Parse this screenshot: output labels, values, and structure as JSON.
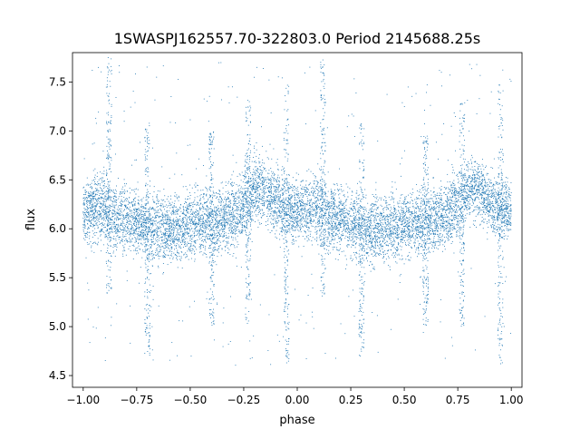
{
  "chart_data": {
    "type": "scatter",
    "title": "1SWASPJ162557.70-322803.0 Period 2145688.25s",
    "xlabel": "phase",
    "ylabel": "flux",
    "xlim": [
      -1.05,
      1.05
    ],
    "ylim": [
      4.38,
      7.8
    ],
    "xticks": [
      -1.0,
      -0.75,
      -0.5,
      -0.25,
      0.0,
      0.25,
      0.5,
      0.75,
      1.0
    ],
    "xtick_labels": [
      "−1.00",
      "−0.75",
      "−0.50",
      "−0.25",
      "0.00",
      "0.25",
      "0.50",
      "0.75",
      "1.00"
    ],
    "yticks": [
      4.5,
      5.0,
      5.5,
      6.0,
      6.5,
      7.0,
      7.5
    ],
    "ytick_labels": [
      "4.5",
      "5.0",
      "5.5",
      "6.0",
      "6.5",
      "7.0",
      "7.5"
    ],
    "grid": false,
    "marker_color": "#1f77b4",
    "profile": {
      "phase": [
        0.0,
        0.05,
        0.1,
        0.15,
        0.2,
        0.25,
        0.3,
        0.35,
        0.4,
        0.45,
        0.5,
        0.55,
        0.6,
        0.65,
        0.7,
        0.75,
        0.8,
        0.85,
        0.9,
        0.95,
        1.0
      ],
      "flux_mean": [
        6.18,
        6.2,
        6.22,
        6.1,
        6.12,
        6.05,
        6.0,
        6.0,
        5.98,
        6.02,
        6.05,
        6.08,
        6.05,
        6.1,
        6.15,
        6.25,
        6.42,
        6.4,
        6.28,
        6.2,
        6.18
      ],
      "flux_spread": [
        0.25,
        0.3,
        0.35,
        0.3,
        0.3,
        0.3,
        0.3,
        0.32,
        0.3,
        0.3,
        0.3,
        0.3,
        0.3,
        0.3,
        0.3,
        0.32,
        0.3,
        0.3,
        0.3,
        0.3,
        0.25
      ]
    },
    "outlier_spikes": [
      {
        "phase": 0.12,
        "flux_min": 5.3,
        "flux_max": 7.75
      },
      {
        "phase": -0.88,
        "flux_min": 5.3,
        "flux_max": 7.75
      },
      {
        "phase": 0.77,
        "flux_min": 5.0,
        "flux_max": 7.3
      },
      {
        "phase": -0.23,
        "flux_min": 5.0,
        "flux_max": 7.3
      },
      {
        "phase": 0.3,
        "flux_min": 4.7,
        "flux_max": 7.1
      },
      {
        "phase": -0.7,
        "flux_min": 4.7,
        "flux_max": 7.1
      },
      {
        "phase": 0.6,
        "flux_min": 5.0,
        "flux_max": 7.0
      },
      {
        "phase": -0.4,
        "flux_min": 5.0,
        "flux_max": 7.0
      },
      {
        "phase": 0.95,
        "flux_min": 4.6,
        "flux_max": 7.5
      },
      {
        "phase": -0.05,
        "flux_min": 4.6,
        "flux_max": 7.5
      }
    ]
  }
}
